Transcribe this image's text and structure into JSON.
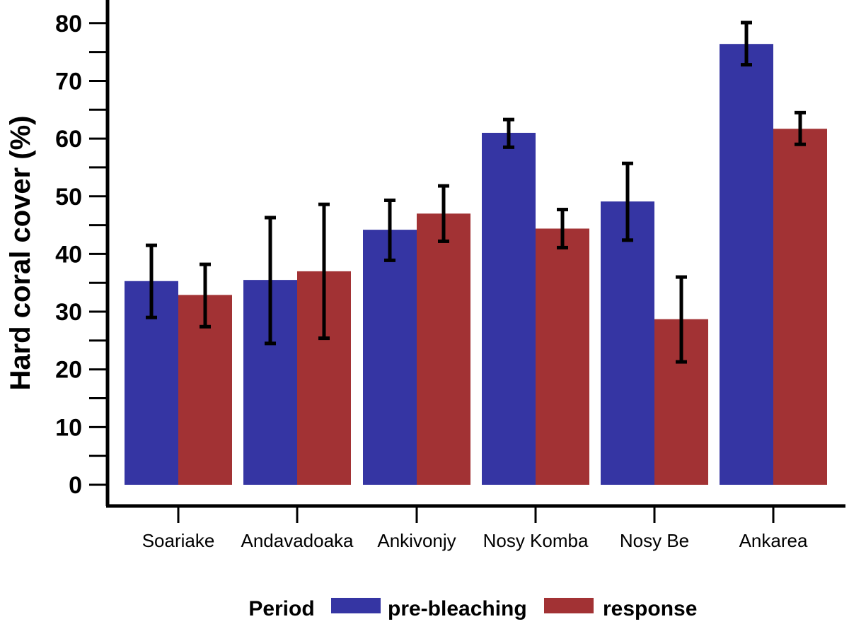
{
  "chart_data": {
    "type": "bar",
    "ylabel": "Hard coral cover (%)",
    "xlabel": "",
    "ylim": [
      0,
      84
    ],
    "yticks": [
      0,
      10,
      20,
      30,
      40,
      50,
      60,
      70,
      80
    ],
    "categories": [
      "Soariake",
      "Andavadoaka",
      "Ankivonjy",
      "Nosy Komba",
      "Nosy Be",
      "Ankarea"
    ],
    "legend": {
      "title": "Period",
      "position": "bottom"
    },
    "series": [
      {
        "name": "pre-bleaching",
        "color": "#3535a3",
        "values": [
          35.3,
          35.5,
          44.2,
          61.0,
          49.1,
          76.4
        ],
        "error_low": [
          29.0,
          24.5,
          38.9,
          58.5,
          42.4,
          72.8
        ],
        "error_high": [
          41.5,
          46.3,
          49.3,
          63.3,
          55.7,
          80.1
        ]
      },
      {
        "name": "response",
        "color": "#a23234",
        "values": [
          32.9,
          37.0,
          47.0,
          44.4,
          28.7,
          61.7
        ],
        "error_low": [
          27.4,
          25.4,
          42.2,
          41.1,
          21.3,
          59.0
        ],
        "error_high": [
          38.2,
          48.6,
          51.8,
          47.7,
          36.0,
          64.5
        ]
      }
    ]
  }
}
